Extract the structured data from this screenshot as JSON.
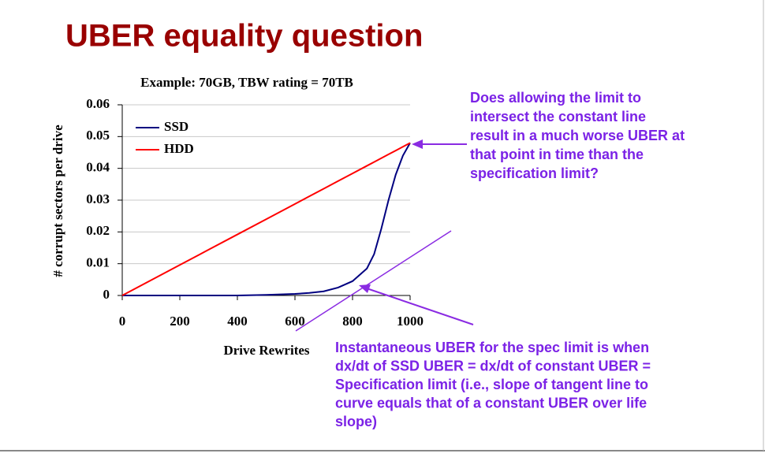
{
  "slide": {
    "title": "UBER equality question",
    "annotations": [
      {
        "lines": [
          "Does allowing the limit to",
          "intersect the constant line",
          "result in a much worse UBER at",
          "that point in time than the",
          "specification limit?"
        ]
      },
      {
        "lines": [
          "Instantaneous UBER for the spec limit is when",
          "dx/dt of SSD UBER = dx/dt of constant UBER =",
          "Specification limit (i.e., slope of tangent line to",
          "curve equals that of a constant UBER over life",
          "slope)"
        ]
      }
    ]
  },
  "chart_data": {
    "type": "line",
    "title": "Example: 70GB, TBW rating = 70TB",
    "x_label": "Drive Rewrites",
    "y_label": "# corrupt sectors per drive",
    "x": [
      0,
      100,
      200,
      300,
      400,
      500,
      600,
      650,
      700,
      750,
      800,
      850,
      875,
      900,
      925,
      950,
      975,
      1000
    ],
    "series": [
      {
        "name": "SSD",
        "color": "#000080",
        "values": [
          0,
          0,
          0,
          0,
          0,
          0.0002,
          0.0005,
          0.0008,
          0.0013,
          0.0025,
          0.0045,
          0.0085,
          0.013,
          0.021,
          0.03,
          0.038,
          0.044,
          0.048
        ]
      },
      {
        "name": "HDD",
        "color": "#ff0000",
        "values": [
          0,
          0.0048,
          0.0096,
          0.0144,
          0.0192,
          0.024,
          0.0288,
          0.0312,
          0.0336,
          0.036,
          0.0384,
          0.0408,
          0.042,
          0.0432,
          0.0444,
          0.0456,
          0.0468,
          0.048
        ]
      }
    ],
    "xlim": [
      0,
      1000
    ],
    "ylim": [
      0,
      0.06
    ],
    "xticks": [
      0,
      200,
      400,
      600,
      800,
      1000
    ],
    "yticks": [
      0,
      0.01,
      0.02,
      0.03,
      0.04,
      0.05,
      0.06
    ],
    "grid": true,
    "legend": "upper left"
  }
}
